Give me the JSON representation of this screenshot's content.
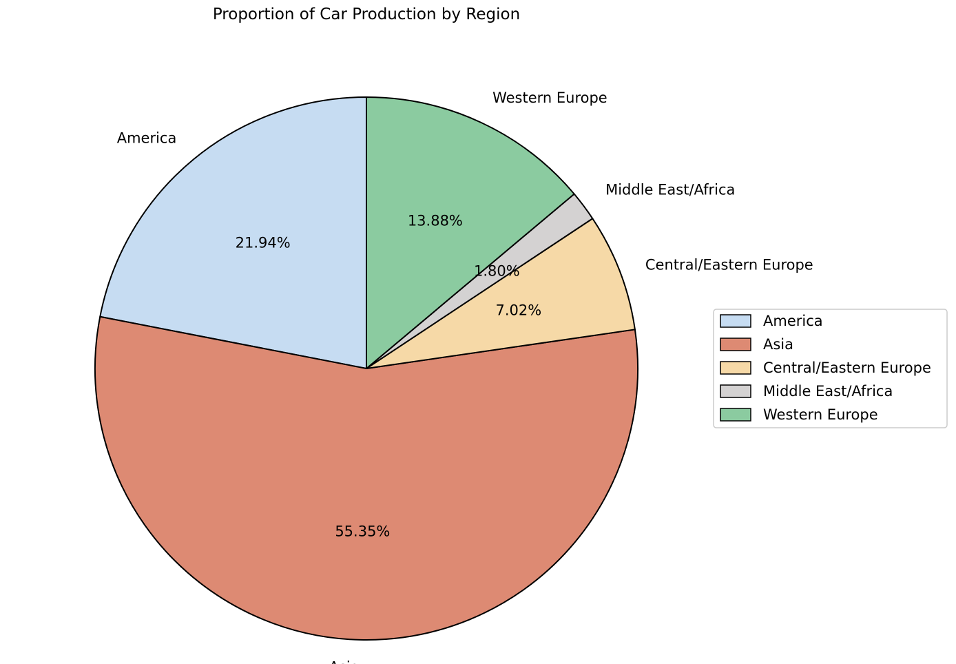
{
  "chart_data": {
    "type": "pie",
    "title": "Proportion of Car Production by Region",
    "start_angle_deg": 90,
    "direction": "counterclockwise",
    "legend_position": "right",
    "slices": [
      {
        "label": "America",
        "value": 21.94,
        "pct_label": "21.94%",
        "color": "#c6dcf2"
      },
      {
        "label": "Asia",
        "value": 55.35,
        "pct_label": "55.35%",
        "color": "#dd8a73"
      },
      {
        "label": "Central/Eastern Europe",
        "value": 7.02,
        "pct_label": "7.02%",
        "color": "#f6d9a7"
      },
      {
        "label": "Middle East/Africa",
        "value": 1.8,
        "pct_label": "1.80%",
        "color": "#d4d2d2"
      },
      {
        "label": "Western Europe",
        "value": 13.88,
        "pct_label": "13.88%",
        "color": "#8bcba0"
      }
    ]
  }
}
